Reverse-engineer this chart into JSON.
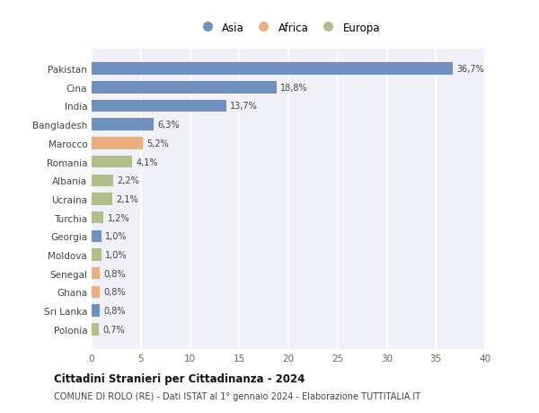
{
  "categories": [
    "Pakistan",
    "Cina",
    "India",
    "Bangladesh",
    "Marocco",
    "Romania",
    "Albania",
    "Ucraina",
    "Turchia",
    "Georgia",
    "Moldova",
    "Senegal",
    "Ghana",
    "Sri Lanka",
    "Polonia"
  ],
  "values": [
    36.7,
    18.8,
    13.7,
    6.3,
    5.2,
    4.1,
    2.2,
    2.1,
    1.2,
    1.0,
    1.0,
    0.8,
    0.8,
    0.8,
    0.7
  ],
  "labels": [
    "36,7%",
    "18,8%",
    "13,7%",
    "6,3%",
    "5,2%",
    "4,1%",
    "2,2%",
    "2,1%",
    "1,2%",
    "1,0%",
    "1,0%",
    "0,8%",
    "0,8%",
    "0,8%",
    "0,7%"
  ],
  "colors": [
    "#7090c0",
    "#7090c0",
    "#7090c0",
    "#7090c0",
    "#e8b080",
    "#b0bf88",
    "#b0bf88",
    "#b0bf88",
    "#b0bf88",
    "#7090c0",
    "#b0bf88",
    "#e8b080",
    "#e8b080",
    "#7090c0",
    "#b0bf88"
  ],
  "legend_labels": [
    "Asia",
    "Africa",
    "Europa"
  ],
  "legend_colors": [
    "#7090c0",
    "#e8b080",
    "#b0bf88"
  ],
  "xlim": [
    0,
    40
  ],
  "xticks": [
    0,
    5,
    10,
    15,
    20,
    25,
    30,
    35,
    40
  ],
  "title": "Cittadini Stranieri per Cittadinanza - 2024",
  "subtitle": "COMUNE DI ROLO (RE) - Dati ISTAT al 1° gennaio 2024 - Elaborazione TUTTITALIA.IT",
  "background_color": "#ffffff",
  "plot_bg_color": "#f0f0f8",
  "grid_color": "#ffffff",
  "bar_height": 0.65
}
